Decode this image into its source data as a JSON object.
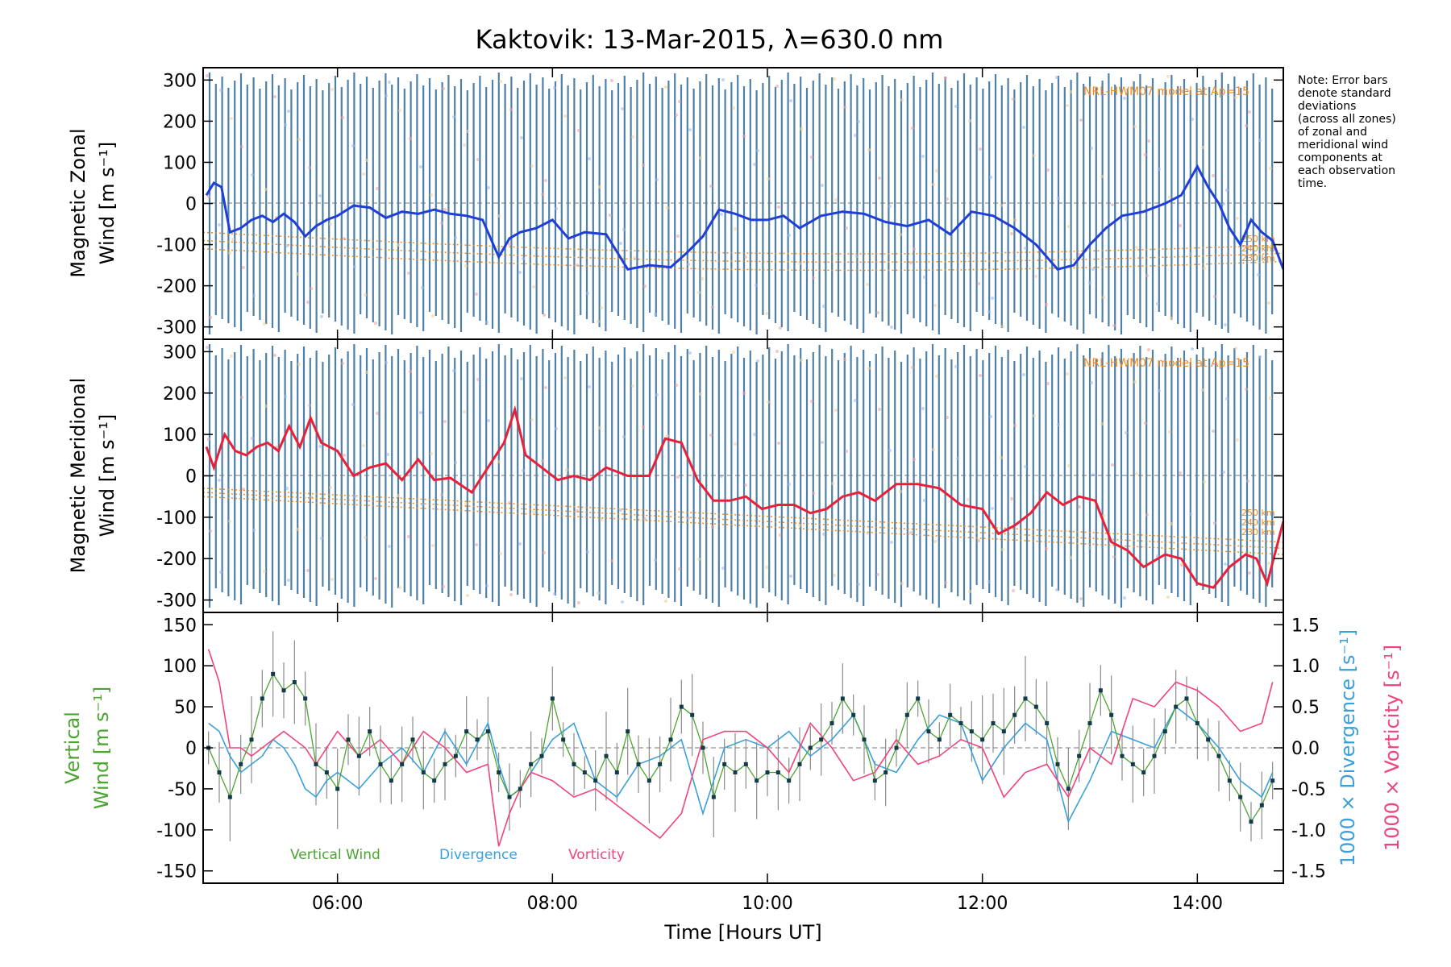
{
  "title": "Kaktovik: 13-Mar-2015, λ=630.0 nm",
  "note": [
    "Note: Error bars",
    "denote standard",
    "deviations",
    "(across all zones)",
    "of zonal and",
    "meridional wind",
    "components at",
    "each observation",
    "time."
  ],
  "panels": {
    "zonal": {
      "ylabel": "Magnetic Zonal",
      "ylabel2": "Wind [m s⁻¹]",
      "model_label": "NRL-HWM07 model at Ap=15",
      "alt_labels": [
        "250 km",
        "240 km",
        "230 km"
      ]
    },
    "meridional": {
      "ylabel": "Magnetic Meridional",
      "ylabel2": "Wind [m s⁻¹]",
      "model_label": "NRL-HWM07 model at Ap=15",
      "alt_labels": [
        "250 km",
        "240 km",
        "230 km"
      ]
    },
    "vertical": {
      "ylabel": "Vertical",
      "ylabel2": "Wind [m s⁻¹]",
      "right_label_div": "1000 × Divergence [s⁻¹]",
      "right_label_vort": "1000 × Vorticity [s⁻¹]",
      "legend": [
        "Vertical Wind",
        "Divergence",
        "Vorticity"
      ]
    }
  },
  "xlabel": "Time [Hours UT]",
  "x_ticks": [
    "06:00",
    "08:00",
    "10:00",
    "12:00",
    "14:00"
  ],
  "colors": {
    "zonal": "#1f3fd6",
    "meridional": "#e8203a",
    "vertical": "#4aa52e",
    "divergence": "#3b9fd9",
    "vorticity": "#f0447a",
    "errorbar_steel": "#2e6b9a",
    "model": "#f08a1e"
  },
  "chart_data": [
    {
      "type": "line",
      "panel": "zonal",
      "xlim": [
        4.75,
        14.8
      ],
      "ylim": [
        -330,
        330
      ],
      "yticks": [
        300,
        200,
        100,
        0,
        -100,
        -200,
        -300
      ],
      "series": [
        {
          "name": "Magnetic Zonal Wind",
          "x": [
            4.78,
            4.85,
            4.92,
            5.0,
            5.1,
            5.2,
            5.3,
            5.4,
            5.5,
            5.6,
            5.7,
            5.8,
            5.9,
            6.0,
            6.15,
            6.3,
            6.45,
            6.6,
            6.75,
            6.9,
            7.05,
            7.2,
            7.35,
            7.5,
            7.6,
            7.7,
            7.85,
            8.0,
            8.15,
            8.3,
            8.5,
            8.7,
            8.9,
            9.1,
            9.25,
            9.4,
            9.55,
            9.7,
            9.85,
            10.0,
            10.15,
            10.3,
            10.5,
            10.7,
            10.9,
            11.1,
            11.3,
            11.5,
            11.7,
            11.9,
            12.1,
            12.3,
            12.5,
            12.7,
            12.85,
            13.0,
            13.15,
            13.3,
            13.5,
            13.7,
            13.85,
            14.0,
            14.1,
            14.2,
            14.3,
            14.4,
            14.5,
            14.6,
            14.7,
            14.8
          ],
          "y": [
            20,
            50,
            40,
            -70,
            -60,
            -40,
            -30,
            -45,
            -25,
            -45,
            -80,
            -55,
            -40,
            -30,
            -5,
            -10,
            -35,
            -20,
            -25,
            -15,
            -25,
            -30,
            -40,
            -130,
            -85,
            -70,
            -60,
            -40,
            -85,
            -70,
            -75,
            -160,
            -150,
            -155,
            -120,
            -80,
            -15,
            -25,
            -40,
            -40,
            -30,
            -60,
            -30,
            -20,
            -25,
            -45,
            -55,
            -40,
            -75,
            -20,
            -30,
            -60,
            -100,
            -160,
            -150,
            -100,
            -60,
            -30,
            -20,
            0,
            20,
            90,
            40,
            0,
            -60,
            -100,
            -40,
            -70,
            -90,
            -160
          ]
        }
      ]
    },
    {
      "type": "line",
      "panel": "meridional",
      "xlim": [
        4.75,
        14.8
      ],
      "ylim": [
        -330,
        330
      ],
      "yticks": [
        300,
        200,
        100,
        0,
        -100,
        -200,
        -300
      ],
      "series": [
        {
          "name": "Magnetic Meridional Wind",
          "x": [
            4.78,
            4.85,
            4.95,
            5.05,
            5.15,
            5.25,
            5.35,
            5.45,
            5.55,
            5.65,
            5.75,
            5.85,
            6.0,
            6.15,
            6.3,
            6.45,
            6.6,
            6.75,
            6.9,
            7.05,
            7.25,
            7.4,
            7.55,
            7.65,
            7.75,
            7.9,
            8.05,
            8.2,
            8.35,
            8.5,
            8.7,
            8.9,
            9.05,
            9.2,
            9.35,
            9.5,
            9.65,
            9.8,
            9.95,
            10.1,
            10.25,
            10.4,
            10.55,
            10.7,
            10.85,
            11.0,
            11.2,
            11.4,
            11.6,
            11.8,
            12.0,
            12.15,
            12.3,
            12.45,
            12.6,
            12.75,
            12.9,
            13.05,
            13.2,
            13.35,
            13.5,
            13.7,
            13.85,
            14.0,
            14.15,
            14.3,
            14.45,
            14.55,
            14.65,
            14.8
          ],
          "y": [
            70,
            20,
            100,
            60,
            50,
            70,
            80,
            60,
            120,
            70,
            140,
            80,
            60,
            0,
            20,
            30,
            -10,
            40,
            -10,
            -5,
            -40,
            20,
            80,
            160,
            50,
            20,
            -10,
            0,
            -10,
            20,
            0,
            0,
            90,
            80,
            -10,
            -60,
            -60,
            -50,
            -80,
            -70,
            -70,
            -90,
            -80,
            -50,
            -40,
            -60,
            -20,
            -20,
            -30,
            -70,
            -80,
            -140,
            -120,
            -90,
            -40,
            -70,
            -50,
            -60,
            -160,
            -180,
            -220,
            -190,
            -200,
            -260,
            -270,
            -220,
            -190,
            -200,
            -260,
            -110
          ]
        }
      ]
    },
    {
      "type": "line",
      "panel": "vertical",
      "xlim": [
        4.75,
        14.8
      ],
      "ylim": [
        -165,
        165
      ],
      "yticks": [
        150,
        100,
        50,
        0,
        -50,
        -100,
        -150
      ],
      "right_ylim": [
        -1.65,
        1.65
      ],
      "right_yticks": [
        1.5,
        1.0,
        0.5,
        0.0,
        -0.5,
        -1.0,
        -1.5
      ],
      "series": [
        {
          "name": "Vertical Wind",
          "x": [
            4.8,
            4.9,
            5.0,
            5.1,
            5.2,
            5.3,
            5.4,
            5.5,
            5.6,
            5.7,
            5.8,
            5.9,
            6.0,
            6.1,
            6.2,
            6.3,
            6.4,
            6.5,
            6.6,
            6.7,
            6.8,
            6.9,
            7.0,
            7.1,
            7.2,
            7.3,
            7.4,
            7.5,
            7.6,
            7.7,
            7.8,
            7.9,
            8.0,
            8.1,
            8.2,
            8.3,
            8.4,
            8.5,
            8.6,
            8.7,
            8.8,
            8.9,
            9.0,
            9.1,
            9.2,
            9.3,
            9.4,
            9.5,
            9.6,
            9.7,
            9.8,
            9.9,
            10.0,
            10.1,
            10.2,
            10.3,
            10.4,
            10.5,
            10.6,
            10.7,
            10.8,
            10.9,
            11.0,
            11.1,
            11.2,
            11.3,
            11.4,
            11.5,
            11.6,
            11.7,
            11.8,
            11.9,
            12.0,
            12.1,
            12.2,
            12.3,
            12.4,
            12.5,
            12.6,
            12.7,
            12.8,
            12.9,
            13.0,
            13.1,
            13.2,
            13.3,
            13.4,
            13.5,
            13.6,
            13.7,
            13.8,
            13.9,
            14.0,
            14.1,
            14.2,
            14.3,
            14.4,
            14.5,
            14.6,
            14.7
          ],
          "y": [
            0,
            -30,
            -60,
            -20,
            10,
            60,
            90,
            70,
            80,
            60,
            -20,
            -30,
            -50,
            10,
            -10,
            20,
            -20,
            -40,
            -20,
            10,
            -30,
            -40,
            -20,
            -10,
            20,
            10,
            20,
            -30,
            -60,
            -50,
            -20,
            -10,
            60,
            10,
            -20,
            -30,
            -40,
            -10,
            -30,
            20,
            -20,
            -40,
            -20,
            10,
            50,
            40,
            0,
            -60,
            -20,
            -30,
            -20,
            -40,
            -30,
            -30,
            -40,
            -20,
            0,
            10,
            30,
            60,
            40,
            10,
            -40,
            -30,
            0,
            40,
            60,
            20,
            10,
            40,
            30,
            20,
            10,
            30,
            20,
            40,
            60,
            50,
            30,
            -20,
            -50,
            -10,
            30,
            70,
            40,
            -10,
            -20,
            -30,
            -10,
            20,
            50,
            60,
            30,
            10,
            -10,
            -40,
            -60,
            -90,
            -70,
            -40
          ]
        },
        {
          "name": "Divergence",
          "x": [
            4.8,
            4.9,
            5.0,
            5.1,
            5.2,
            5.3,
            5.4,
            5.5,
            5.6,
            5.7,
            5.8,
            5.9,
            6.0,
            6.2,
            6.4,
            6.6,
            6.8,
            7.0,
            7.2,
            7.4,
            7.5,
            7.6,
            7.7,
            7.8,
            8.0,
            8.2,
            8.4,
            8.6,
            8.8,
            9.0,
            9.2,
            9.4,
            9.6,
            9.8,
            10.0,
            10.2,
            10.4,
            10.6,
            10.8,
            11.0,
            11.2,
            11.4,
            11.6,
            11.8,
            12.0,
            12.2,
            12.4,
            12.6,
            12.8,
            13.0,
            13.2,
            13.4,
            13.6,
            13.8,
            14.0,
            14.2,
            14.4,
            14.6,
            14.7
          ],
          "y": [
            0.3,
            0.2,
            -0.1,
            -0.3,
            -0.2,
            -0.1,
            0.1,
            0.0,
            -0.2,
            -0.5,
            -0.6,
            -0.4,
            -0.3,
            -0.5,
            -0.2,
            0.0,
            -0.3,
            0.2,
            -0.2,
            0.3,
            -0.2,
            -0.6,
            -0.5,
            -0.3,
            0.1,
            0.3,
            -0.4,
            -0.6,
            -0.2,
            -0.1,
            0.1,
            -0.8,
            0.0,
            0.1,
            0.0,
            0.2,
            -0.1,
            0.1,
            0.4,
            -0.2,
            -0.3,
            0.1,
            0.4,
            0.3,
            -0.4,
            0.0,
            0.3,
            0.1,
            -0.9,
            -0.4,
            0.2,
            0.1,
            0.0,
            0.5,
            0.3,
            0.0,
            -0.4,
            -0.6,
            -0.3
          ]
        },
        {
          "name": "Vorticity",
          "x": [
            4.8,
            4.9,
            5.0,
            5.1,
            5.2,
            5.3,
            5.4,
            5.5,
            5.6,
            5.7,
            5.8,
            6.0,
            6.2,
            6.4,
            6.6,
            6.8,
            7.0,
            7.2,
            7.4,
            7.5,
            7.6,
            7.7,
            7.8,
            8.0,
            8.2,
            8.4,
            8.6,
            8.8,
            9.0,
            9.2,
            9.4,
            9.6,
            9.8,
            10.0,
            10.2,
            10.4,
            10.6,
            10.8,
            11.0,
            11.2,
            11.4,
            11.6,
            11.8,
            12.0,
            12.2,
            12.4,
            12.6,
            12.8,
            13.0,
            13.2,
            13.4,
            13.6,
            13.8,
            14.0,
            14.2,
            14.4,
            14.6,
            14.7
          ],
          "y": [
            1.2,
            0.8,
            0.0,
            0.0,
            -0.1,
            0.0,
            0.1,
            0.2,
            0.1,
            0.0,
            -0.2,
            0.2,
            -0.1,
            0.1,
            -0.2,
            0.2,
            0.0,
            -0.3,
            -0.2,
            -1.2,
            -0.8,
            -0.5,
            -0.3,
            -0.4,
            -0.6,
            -0.5,
            -0.7,
            -0.9,
            -1.1,
            -0.8,
            0.1,
            0.2,
            0.2,
            0.0,
            -0.3,
            0.3,
            0.0,
            -0.4,
            -0.3,
            0.1,
            -0.2,
            -0.1,
            0.1,
            0.0,
            -0.6,
            -0.3,
            -0.2,
            -0.6,
            0.0,
            -0.2,
            0.6,
            0.5,
            0.8,
            0.7,
            0.5,
            0.2,
            0.3,
            0.8
          ]
        }
      ]
    }
  ]
}
